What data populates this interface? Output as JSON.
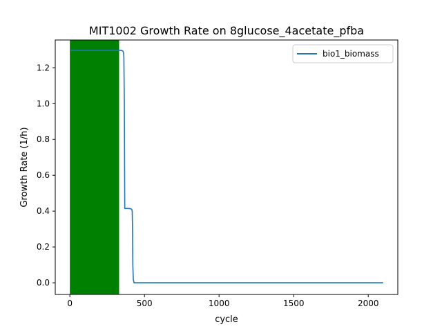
{
  "chart_data": {
    "type": "line",
    "title": "MIT1002 Growth Rate on 8glucose_4acetate_pfba",
    "xlabel": "cycle",
    "ylabel": "Growth Rate (1/h)",
    "xlim": [
      -98,
      2198
    ],
    "ylim": [
      -0.065,
      1.355
    ],
    "xticks": [
      0,
      500,
      1000,
      1500,
      2000
    ],
    "yticks": [
      0.0,
      0.2,
      0.4,
      0.6,
      0.8,
      1.0,
      1.2
    ],
    "grid": false,
    "legend_position": "upper right",
    "shaded_span": {
      "x_start": 0,
      "x_end": 330,
      "color": "#008000"
    },
    "series": [
      {
        "name": "bio1_biomass",
        "color": "#1f77b4",
        "x": [
          0,
          340,
          350,
          355,
          360,
          362,
          365,
          368,
          375,
          390,
          405,
          415,
          418,
          420,
          422,
          425,
          430,
          440,
          600,
          1000,
          1500,
          2100
        ],
        "y": [
          1.297,
          1.297,
          1.296,
          1.293,
          1.285,
          1.26,
          1.0,
          0.415,
          0.415,
          0.415,
          0.414,
          0.41,
          0.4,
          0.3,
          0.1,
          0.02,
          0.0,
          0.0,
          0.0,
          0.0,
          0.0,
          0.0
        ]
      }
    ]
  }
}
